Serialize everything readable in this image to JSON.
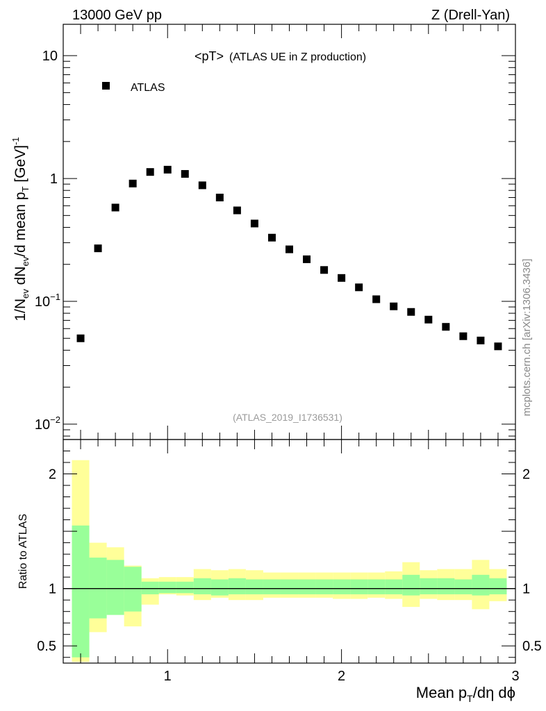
{
  "header": {
    "energy_label": "13000 GeV pp",
    "process_label": "Z (Drell-Yan)"
  },
  "side_label": "mcplots.cern.ch [arXiv:1306.3436]",
  "chart_data": [
    {
      "type": "scatter",
      "panel": "main",
      "title_main": "<pT>",
      "title_sub": "(ATLAS UE in Z production)",
      "analysis_id": "(ATLAS_2019_I1736531)",
      "ylabel": "1/N_ev dN_ev/d mean p_T [GeV]^-1",
      "yscale": "log",
      "ylim": [
        0.0075,
        18
      ],
      "xlim": [
        0.4,
        3.0
      ],
      "yticks": [
        {
          "value": 0.01,
          "base": "10",
          "exp": "−2"
        },
        {
          "value": 0.1,
          "base": "10",
          "exp": "−1"
        },
        {
          "value": 1,
          "base": "1",
          "exp": ""
        },
        {
          "value": 10,
          "base": "10",
          "exp": ""
        }
      ],
      "legend": [
        {
          "label": "ATLAS",
          "marker": "square",
          "color": "#000000"
        }
      ],
      "series": [
        {
          "name": "ATLAS",
          "x": [
            0.5,
            0.6,
            0.7,
            0.8,
            0.9,
            1.0,
            1.1,
            1.2,
            1.3,
            1.4,
            1.5,
            1.6,
            1.7,
            1.8,
            1.9,
            2.0,
            2.1,
            2.2,
            2.3,
            2.4,
            2.5,
            2.6,
            2.7,
            2.8,
            2.9
          ],
          "y": [
            0.05,
            0.27,
            0.58,
            0.91,
            1.13,
            1.18,
            1.09,
            0.88,
            0.7,
            0.55,
            0.43,
            0.33,
            0.265,
            0.22,
            0.18,
            0.155,
            0.13,
            0.104,
            0.091,
            0.082,
            0.071,
            0.062,
            0.052,
            0.048,
            0.043
          ]
        }
      ]
    },
    {
      "type": "area",
      "panel": "ratio",
      "ylabel": "Ratio to ATLAS",
      "xlabel": "Mean p_T/dη dϕ",
      "xlim": [
        0.4,
        3.0
      ],
      "ylim": [
        0.35,
        2.3
      ],
      "xticks": [
        "1",
        "2",
        "3"
      ],
      "yticks": [
        "0.5",
        "1",
        "2"
      ],
      "reference_line": 1,
      "bins": [
        0.45,
        0.55,
        0.65,
        0.75,
        0.85,
        0.95,
        1.05,
        1.15,
        1.25,
        1.35,
        1.45,
        1.55,
        1.65,
        1.75,
        1.85,
        1.95,
        2.05,
        2.15,
        2.25,
        2.35,
        2.45,
        2.55,
        2.65,
        2.75,
        2.85,
        2.95
      ],
      "band_stat": {
        "name": "stat",
        "color": "#99ff99",
        "lo": [
          0.4,
          0.74,
          0.77,
          0.8,
          0.95,
          0.96,
          0.96,
          0.95,
          0.94,
          0.95,
          0.95,
          0.95,
          0.95,
          0.95,
          0.95,
          0.95,
          0.95,
          0.95,
          0.95,
          0.94,
          0.95,
          0.95,
          0.95,
          0.94,
          0.95
        ],
        "hi": [
          1.55,
          1.27,
          1.25,
          1.19,
          1.06,
          1.06,
          1.06,
          1.09,
          1.08,
          1.09,
          1.08,
          1.08,
          1.08,
          1.08,
          1.08,
          1.08,
          1.08,
          1.08,
          1.08,
          1.12,
          1.09,
          1.09,
          1.08,
          1.12,
          1.09
        ]
      },
      "band_total": {
        "name": "stat+syst",
        "color": "#ffff99",
        "lo": [
          0.36,
          0.62,
          0.83,
          0.67,
          0.86,
          0.95,
          0.94,
          0.9,
          0.92,
          0.9,
          0.9,
          0.92,
          0.92,
          0.92,
          0.92,
          0.91,
          0.91,
          0.92,
          0.91,
          0.84,
          0.91,
          0.9,
          0.9,
          0.82,
          0.89
        ],
        "hi": [
          2.12,
          1.4,
          1.36,
          1.2,
          1.09,
          1.1,
          1.1,
          1.17,
          1.16,
          1.17,
          1.16,
          1.14,
          1.14,
          1.14,
          1.14,
          1.14,
          1.14,
          1.14,
          1.15,
          1.23,
          1.16,
          1.17,
          1.17,
          1.25,
          1.17
        ]
      }
    }
  ]
}
